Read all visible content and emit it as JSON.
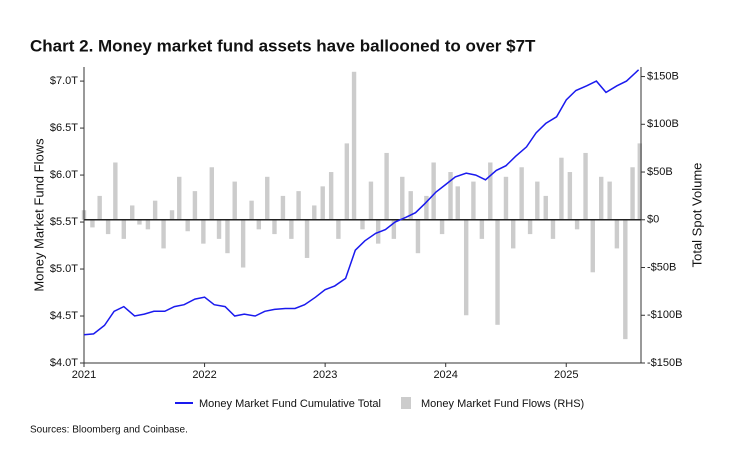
{
  "chart_data": {
    "type": "line-bar",
    "title": "Chart 2. Money market fund assets have ballooned to over $7T",
    "y_label": "Money Market Fund Flows",
    "y2_label": "Total Spot Volume",
    "source": "Sources: Bloomberg and Coinbase.",
    "xlim": [
      2021,
      2025.62
    ],
    "xticks": [
      2021,
      2022,
      2023,
      2024,
      2025
    ],
    "ylim": [
      4.0,
      7.15
    ],
    "yticks": [
      {
        "value": 4.0,
        "label": "$4.0T"
      },
      {
        "value": 4.5,
        "label": "$4.5T"
      },
      {
        "value": 5.0,
        "label": "$5.0T"
      },
      {
        "value": 5.5,
        "label": "$5.5T"
      },
      {
        "value": 6.0,
        "label": "$6.0T"
      },
      {
        "value": 6.5,
        "label": "$6.5T"
      },
      {
        "value": 7.0,
        "label": "$7.0T"
      }
    ],
    "y2lim": [
      -150,
      160
    ],
    "y2ticks": [
      {
        "value": -150,
        "label": "-$150B"
      },
      {
        "value": -100,
        "label": "-$100B"
      },
      {
        "value": -50,
        "label": "-$50B"
      },
      {
        "value": 0,
        "label": "$0"
      },
      {
        "value": 50,
        "label": "$50B"
      },
      {
        "value": 100,
        "label": "$100B"
      },
      {
        "value": 150,
        "label": "$150B"
      }
    ],
    "series": [
      {
        "name": "Money Market Fund Cumulative Total",
        "type": "line",
        "color": "#1a1aee",
        "x": [
          2021.0,
          2021.08,
          2021.17,
          2021.25,
          2021.33,
          2021.42,
          2021.5,
          2021.58,
          2021.67,
          2021.75,
          2021.83,
          2021.92,
          2022.0,
          2022.08,
          2022.17,
          2022.25,
          2022.33,
          2022.42,
          2022.5,
          2022.58,
          2022.67,
          2022.75,
          2022.83,
          2022.92,
          2023.0,
          2023.08,
          2023.17,
          2023.25,
          2023.33,
          2023.42,
          2023.5,
          2023.58,
          2023.67,
          2023.75,
          2023.83,
          2023.92,
          2024.0,
          2024.08,
          2024.17,
          2024.25,
          2024.33,
          2024.42,
          2024.5,
          2024.58,
          2024.67,
          2024.75,
          2024.83,
          2024.92,
          2025.0,
          2025.08,
          2025.17,
          2025.25,
          2025.33,
          2025.42,
          2025.5,
          2025.6
        ],
        "values": [
          4.3,
          4.31,
          4.4,
          4.55,
          4.6,
          4.5,
          4.52,
          4.55,
          4.55,
          4.6,
          4.62,
          4.68,
          4.7,
          4.62,
          4.6,
          4.5,
          4.52,
          4.5,
          4.55,
          4.57,
          4.58,
          4.58,
          4.62,
          4.7,
          4.78,
          4.82,
          4.9,
          5.2,
          5.3,
          5.38,
          5.42,
          5.5,
          5.55,
          5.6,
          5.7,
          5.82,
          5.9,
          5.98,
          6.02,
          6.0,
          5.95,
          6.05,
          6.1,
          6.2,
          6.3,
          6.45,
          6.55,
          6.62,
          6.8,
          6.9,
          6.95,
          7.0,
          6.88,
          6.95,
          7.0,
          7.12
        ]
      },
      {
        "name": "Money Market Fund Flows (RHS)",
        "type": "bar",
        "axis": "y2",
        "color": "#cccccc",
        "x": [
          2021.0,
          2021.07,
          2021.13,
          2021.2,
          2021.26,
          2021.33,
          2021.4,
          2021.46,
          2021.53,
          2021.59,
          2021.66,
          2021.73,
          2021.79,
          2021.86,
          2021.92,
          2021.99,
          2022.06,
          2022.12,
          2022.19,
          2022.25,
          2022.32,
          2022.39,
          2022.45,
          2022.52,
          2022.58,
          2022.65,
          2022.72,
          2022.78,
          2022.85,
          2022.91,
          2022.98,
          2023.05,
          2023.11,
          2023.18,
          2023.24,
          2023.31,
          2023.38,
          2023.44,
          2023.51,
          2023.57,
          2023.64,
          2023.71,
          2023.77,
          2023.84,
          2023.9,
          2023.97,
          2024.04,
          2024.1,
          2024.17,
          2024.23,
          2024.3,
          2024.37,
          2024.43,
          2024.5,
          2024.56,
          2024.63,
          2024.7,
          2024.76,
          2024.83,
          2024.89,
          2024.96,
          2025.03,
          2025.09,
          2025.16,
          2025.22,
          2025.29,
          2025.36,
          2025.42,
          2025.49,
          2025.55,
          2025.61
        ],
        "values": [
          10,
          -8,
          25,
          -15,
          60,
          -20,
          15,
          -5,
          -10,
          20,
          -30,
          10,
          45,
          -12,
          30,
          -25,
          55,
          -20,
          -35,
          40,
          -50,
          20,
          -10,
          45,
          -15,
          25,
          -20,
          30,
          -40,
          15,
          35,
          50,
          -20,
          80,
          155,
          -10,
          40,
          -25,
          70,
          -20,
          45,
          30,
          -35,
          25,
          60,
          -15,
          50,
          35,
          -100,
          40,
          -20,
          60,
          -110,
          45,
          -30,
          55,
          -15,
          40,
          25,
          -20,
          65,
          50,
          -10,
          70,
          -55,
          45,
          40,
          -30,
          -125,
          55,
          80
        ]
      }
    ]
  }
}
